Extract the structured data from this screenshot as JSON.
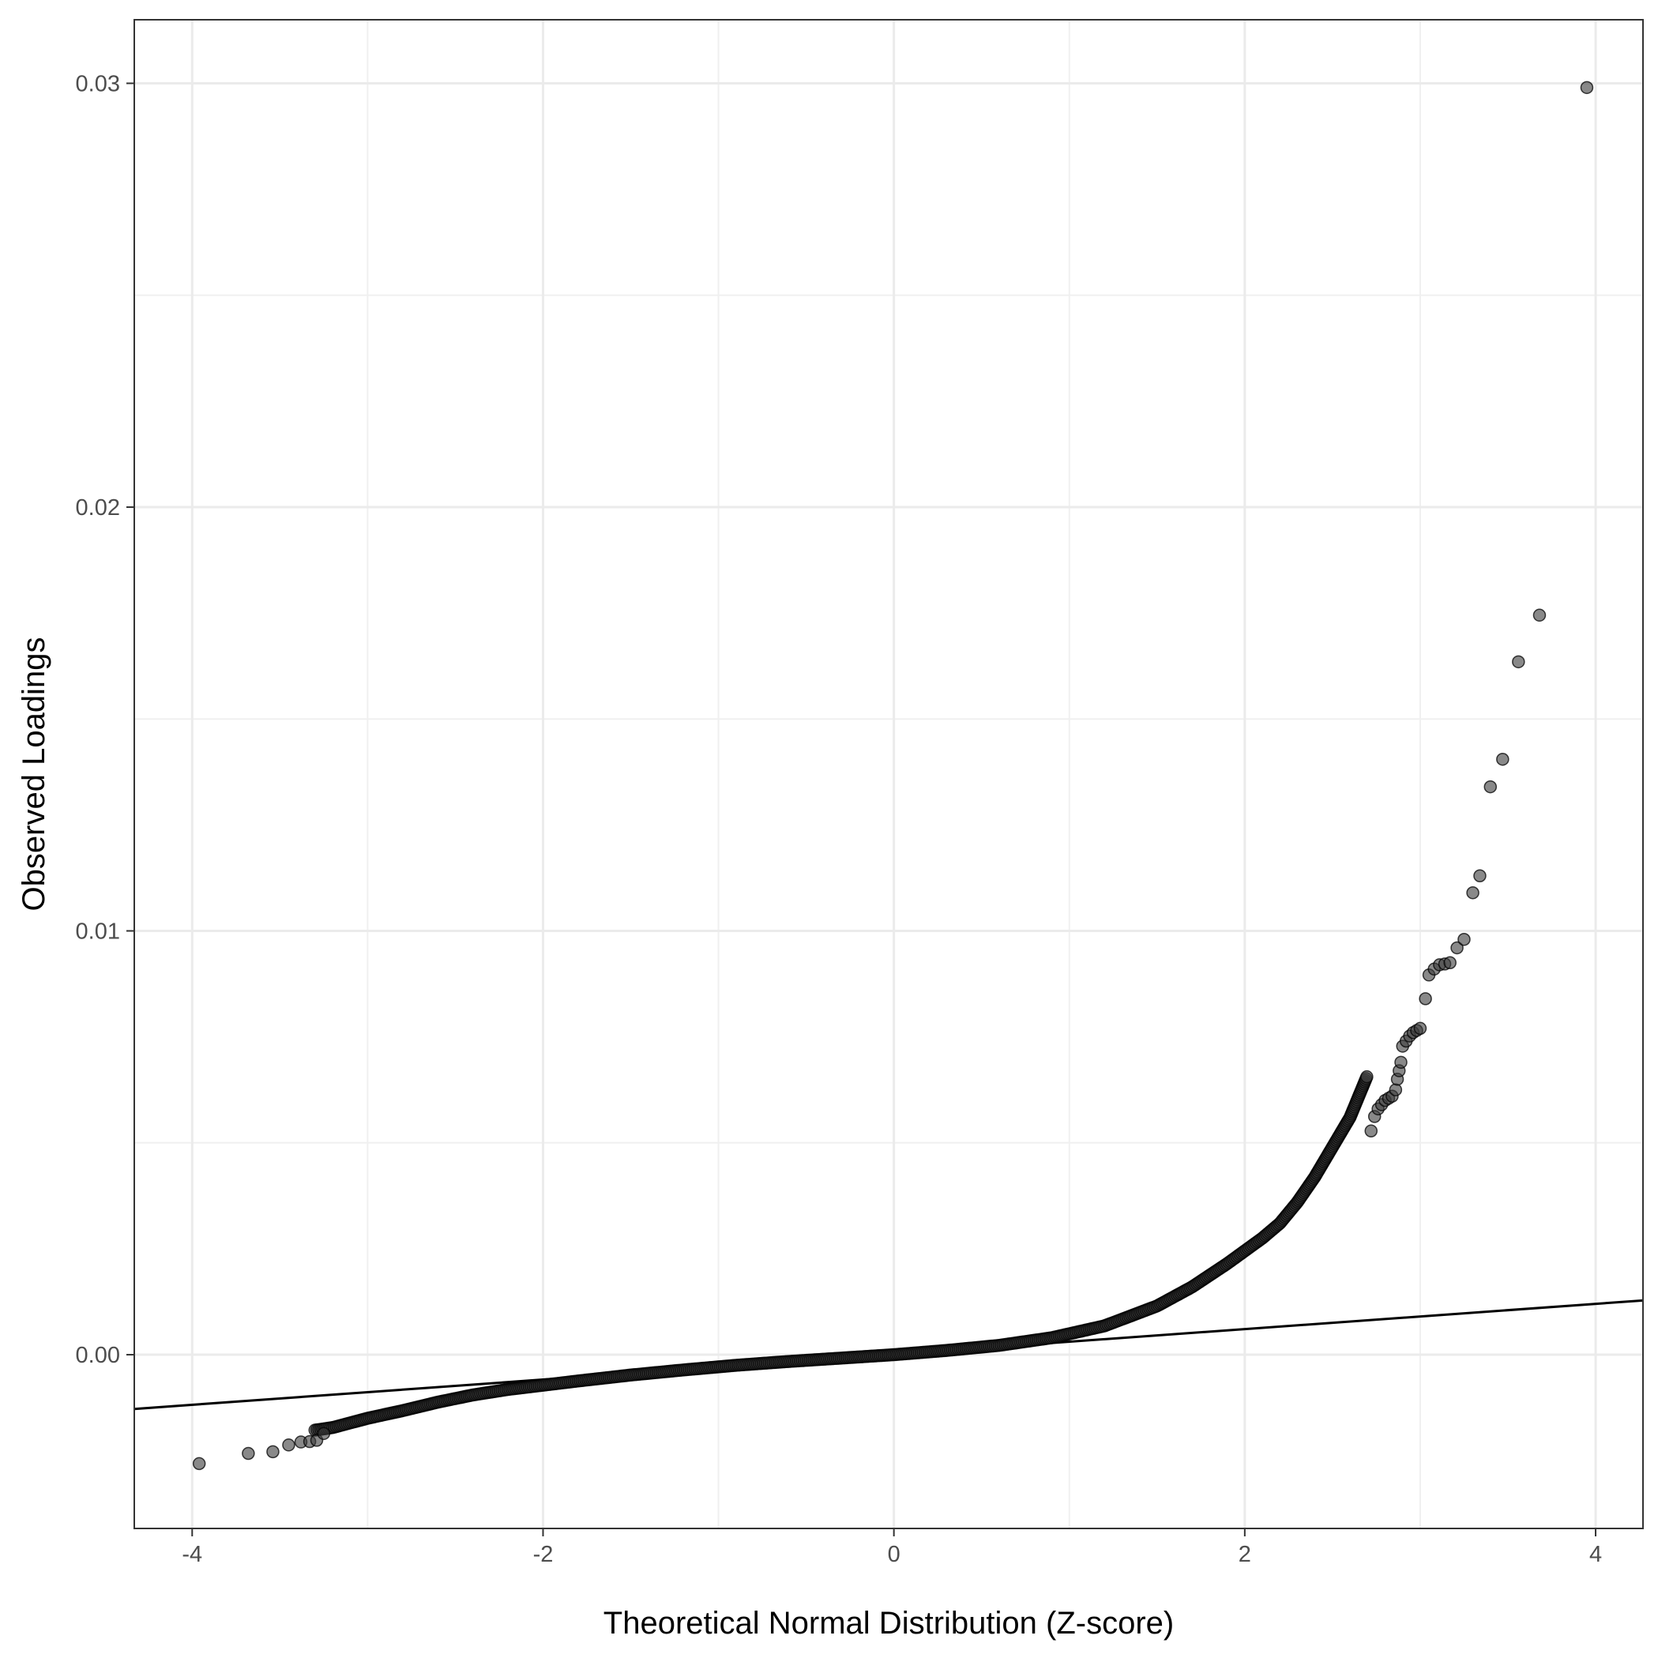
{
  "chart_data": {
    "type": "scatter",
    "title": "",
    "xlabel": "Theoretical Normal Distribution (Z-score)",
    "ylabel": "Observed Loadings",
    "xlim": [
      -4.33,
      4.27
    ],
    "ylim": [
      -0.0041,
      0.0315
    ],
    "x_ticks": [
      -4,
      -2,
      0,
      2,
      4
    ],
    "x_tick_labels": [
      "-4",
      "-2",
      "0",
      "2",
      "4"
    ],
    "y_ticks": [
      0.0,
      0.01,
      0.02,
      0.03
    ],
    "y_tick_labels": [
      "0.00",
      "0.01",
      "0.02",
      "0.03"
    ],
    "grid": true,
    "legend": "none",
    "reference_line": {
      "x": [
        -4.33,
        4.27
      ],
      "y": [
        -0.00128,
        0.00128
      ]
    },
    "point_color": "#3a3a3a",
    "point_opacity": 0.6,
    "line_color": "#000000",
    "curve_x": [
      -3.3,
      -3.2,
      -3.0,
      -2.8,
      -2.6,
      -2.4,
      -2.2,
      -2.0,
      -1.8,
      -1.5,
      -1.2,
      -0.9,
      -0.6,
      -0.3,
      0.0,
      0.3,
      0.6,
      0.9,
      1.2,
      1.5,
      1.7,
      1.9,
      2.0,
      2.1,
      2.2,
      2.3,
      2.4,
      2.5,
      2.6,
      2.7
    ],
    "curve_y": [
      -0.00178,
      -0.00172,
      -0.0015,
      -0.00132,
      -0.00112,
      -0.00095,
      -0.00082,
      -0.00072,
      -0.00062,
      -0.00048,
      -0.00036,
      -0.00025,
      -0.00016,
      -8e-05,
      0.0,
      0.0001,
      0.00022,
      0.0004,
      0.00068,
      0.00115,
      0.0016,
      0.00215,
      0.00245,
      0.00275,
      0.0031,
      0.0036,
      0.0042,
      0.0049,
      0.0056,
      0.0066
    ],
    "tail_points": {
      "x": [
        -3.96,
        -3.68,
        -3.54,
        -3.45,
        -3.38,
        -3.33,
        -3.29,
        -3.25,
        2.72,
        2.74,
        2.76,
        2.78,
        2.8,
        2.82,
        2.84,
        2.86,
        2.87,
        2.88,
        2.89,
        2.9,
        2.92,
        2.94,
        2.96,
        2.98,
        3.0,
        3.03,
        3.05,
        3.08,
        3.11,
        3.14,
        3.17,
        3.21,
        3.25,
        3.3,
        3.34,
        3.4,
        3.47,
        3.56,
        3.68,
        3.95
      ],
      "y": [
        -0.00257,
        -0.00233,
        -0.00229,
        -0.00213,
        -0.00206,
        -0.00205,
        -0.00202,
        -0.00186,
        0.00528,
        0.00562,
        0.0058,
        0.0059,
        0.006,
        0.00605,
        0.0061,
        0.00625,
        0.0065,
        0.0067,
        0.0069,
        0.00728,
        0.0074,
        0.00752,
        0.0076,
        0.00765,
        0.0077,
        0.0084,
        0.00896,
        0.0091,
        0.0092,
        0.00922,
        0.00925,
        0.0096,
        0.0098,
        0.0109,
        0.0113,
        0.0134,
        0.01405,
        0.01635,
        0.01745,
        0.0299
      ]
    }
  }
}
